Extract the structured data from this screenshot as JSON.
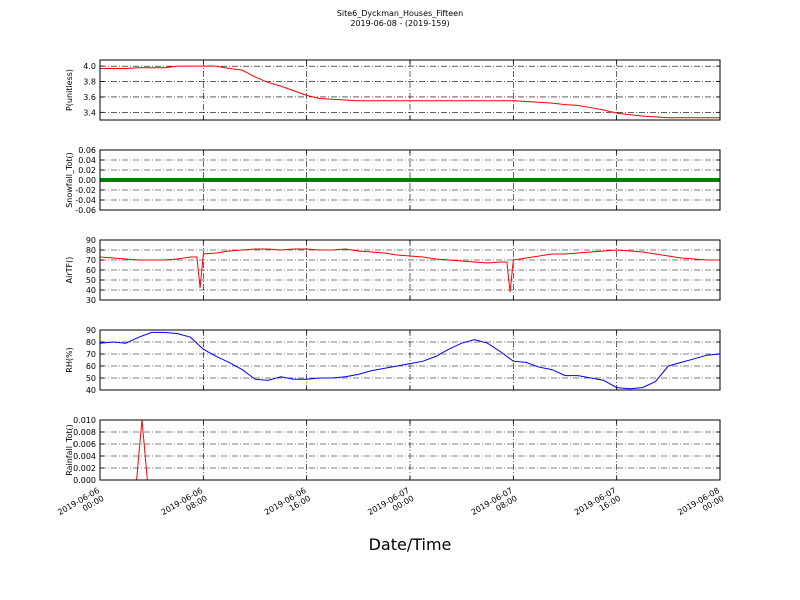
{
  "chart_data": [
    {
      "type": "line",
      "title": "Site6_Dyckman_Houses_Fifteen",
      "subtitle": "2019-06-08 - (2019-159)",
      "ylabel": "P(unitless)",
      "color": "#ff0000",
      "x": [
        "2019-06-06 00:00",
        "2019-06-06 01:00",
        "2019-06-06 02:00",
        "2019-06-06 03:00",
        "2019-06-06 04:00",
        "2019-06-06 05:00",
        "2019-06-06 06:00",
        "2019-06-06 07:00",
        "2019-06-06 08:00",
        "2019-06-06 09:00",
        "2019-06-06 10:00",
        "2019-06-06 11:00",
        "2019-06-06 12:00",
        "2019-06-06 13:00",
        "2019-06-06 14:00",
        "2019-06-06 15:00",
        "2019-06-06 16:00",
        "2019-06-06 17:00",
        "2019-06-06 18:00",
        "2019-06-06 19:00",
        "2019-06-06 20:00",
        "2019-06-06 21:00",
        "2019-06-06 22:00",
        "2019-06-06 23:00",
        "2019-06-07 00:00",
        "2019-06-07 01:00",
        "2019-06-07 02:00",
        "2019-06-07 03:00",
        "2019-06-07 04:00",
        "2019-06-07 05:00",
        "2019-06-07 06:00",
        "2019-06-07 07:00",
        "2019-06-07 08:00",
        "2019-06-07 09:00",
        "2019-06-07 10:00",
        "2019-06-07 11:00",
        "2019-06-07 12:00",
        "2019-06-07 13:00",
        "2019-06-07 14:00",
        "2019-06-07 15:00",
        "2019-06-07 16:00",
        "2019-06-07 17:00",
        "2019-06-07 18:00",
        "2019-06-07 19:00",
        "2019-06-07 20:00",
        "2019-06-07 21:00",
        "2019-06-07 22:00",
        "2019-06-07 23:00",
        "2019-06-08 00:00"
      ],
      "values": [
        3.97,
        3.97,
        3.97,
        3.98,
        3.98,
        3.98,
        4.0,
        4.0,
        4.0,
        4.0,
        3.97,
        3.95,
        3.86,
        3.79,
        3.74,
        3.68,
        3.62,
        3.58,
        3.57,
        3.56,
        3.55,
        3.55,
        3.55,
        3.55,
        3.55,
        3.55,
        3.55,
        3.55,
        3.55,
        3.55,
        3.55,
        3.55,
        3.55,
        3.54,
        3.53,
        3.52,
        3.5,
        3.49,
        3.46,
        3.43,
        3.39,
        3.37,
        3.35,
        3.34,
        3.33,
        3.33,
        3.33,
        3.33,
        3.33
      ],
      "xlim": [
        "2019-06-06 00:00",
        "2019-06-08 00:00"
      ],
      "xticks": [
        "2019-06-06 00:00",
        "2019-06-06 08:00",
        "2019-06-06 16:00",
        "2019-06-07 00:00",
        "2019-06-07 08:00",
        "2019-06-07 16:00",
        "2019-06-08 00:00"
      ],
      "ylim": [
        3.3,
        4.08
      ],
      "yticks": [
        3.4,
        3.6,
        3.8,
        {
          "value": 4.0,
          "label": "4.0"
        }
      ],
      "grid": true
    },
    {
      "type": "line",
      "ylabel": "Snowfall_Tot()",
      "color": "#008000",
      "x": [
        "2019-06-06 00:00",
        "2019-06-08 00:00"
      ],
      "values": [
        0,
        0
      ],
      "xlim": [
        "2019-06-06 00:00",
        "2019-06-08 00:00"
      ],
      "xticks": [
        "2019-06-06 00:00",
        "2019-06-06 08:00",
        "2019-06-06 16:00",
        "2019-06-07 00:00",
        "2019-06-07 08:00",
        "2019-06-07 16:00",
        "2019-06-08 00:00"
      ],
      "ylim": [
        -0.06,
        0.06
      ],
      "yticks": [
        -0.06,
        -0.04,
        -0.02,
        {
          "value": 0,
          "label": "0.00"
        },
        0.02,
        0.04,
        0.06
      ],
      "grid": true
    },
    {
      "type": "line",
      "ylabel": "AirTF()",
      "color": "#ff0000",
      "x": [
        "2019-06-06 00:00",
        "2019-06-06 01:00",
        "2019-06-06 02:00",
        "2019-06-06 03:00",
        "2019-06-06 04:00",
        "2019-06-06 05:00",
        "2019-06-06 06:00",
        "2019-06-06 07:00",
        "2019-06-06 07:30",
        "2019-06-06 07:45",
        "2019-06-06 08:00",
        "2019-06-06 09:00",
        "2019-06-06 10:00",
        "2019-06-06 11:00",
        "2019-06-06 12:00",
        "2019-06-06 13:00",
        "2019-06-06 14:00",
        "2019-06-06 15:00",
        "2019-06-06 16:00",
        "2019-06-06 17:00",
        "2019-06-06 18:00",
        "2019-06-06 19:00",
        "2019-06-06 20:00",
        "2019-06-06 21:00",
        "2019-06-06 22:00",
        "2019-06-06 23:00",
        "2019-06-07 00:00",
        "2019-06-07 01:00",
        "2019-06-07 02:00",
        "2019-06-07 03:00",
        "2019-06-07 04:00",
        "2019-06-07 05:00",
        "2019-06-07 06:00",
        "2019-06-07 07:00",
        "2019-06-07 07:30",
        "2019-06-07 07:45",
        "2019-06-07 08:00",
        "2019-06-07 09:00",
        "2019-06-07 10:00",
        "2019-06-07 11:00",
        "2019-06-07 12:00",
        "2019-06-07 13:00",
        "2019-06-07 14:00",
        "2019-06-07 15:00",
        "2019-06-07 16:00",
        "2019-06-07 17:00",
        "2019-06-07 18:00",
        "2019-06-07 19:00",
        "2019-06-07 20:00",
        "2019-06-07 21:00",
        "2019-06-07 22:00",
        "2019-06-07 23:00",
        "2019-06-08 00:00"
      ],
      "values": [
        73,
        72,
        71,
        70,
        70,
        70,
        71,
        73,
        73,
        42,
        76,
        77,
        79,
        80,
        81,
        81,
        80,
        81,
        81,
        80,
        80,
        81,
        79,
        78,
        77,
        75,
        74,
        73,
        71,
        70,
        69,
        68,
        67,
        68,
        68,
        38,
        70,
        72,
        74,
        76,
        76,
        77,
        78,
        79,
        80,
        79,
        78,
        76,
        74,
        72,
        71,
        70,
        70
      ],
      "xlim": [
        "2019-06-06 00:00",
        "2019-06-08 00:00"
      ],
      "xticks": [
        "2019-06-06 00:00",
        "2019-06-06 08:00",
        "2019-06-06 16:00",
        "2019-06-07 00:00",
        "2019-06-07 08:00",
        "2019-06-07 16:00",
        "2019-06-08 00:00"
      ],
      "ylim": [
        30,
        90
      ],
      "yticks": [
        30,
        40,
        50,
        60,
        70,
        80,
        90
      ],
      "grid": true
    },
    {
      "type": "line",
      "ylabel": "RH(%)",
      "color": "#0000ff",
      "x": [
        "2019-06-06 00:00",
        "2019-06-06 01:00",
        "2019-06-06 02:00",
        "2019-06-06 03:00",
        "2019-06-06 04:00",
        "2019-06-06 05:00",
        "2019-06-06 06:00",
        "2019-06-06 07:00",
        "2019-06-06 08:00",
        "2019-06-06 09:00",
        "2019-06-06 10:00",
        "2019-06-06 11:00",
        "2019-06-06 12:00",
        "2019-06-06 13:00",
        "2019-06-06 14:00",
        "2019-06-06 15:00",
        "2019-06-06 16:00",
        "2019-06-06 17:00",
        "2019-06-06 18:00",
        "2019-06-06 19:00",
        "2019-06-06 20:00",
        "2019-06-06 21:00",
        "2019-06-06 22:00",
        "2019-06-06 23:00",
        "2019-06-07 00:00",
        "2019-06-07 01:00",
        "2019-06-07 02:00",
        "2019-06-07 03:00",
        "2019-06-07 04:00",
        "2019-06-07 05:00",
        "2019-06-07 06:00",
        "2019-06-07 07:00",
        "2019-06-07 08:00",
        "2019-06-07 09:00",
        "2019-06-07 10:00",
        "2019-06-07 11:00",
        "2019-06-07 12:00",
        "2019-06-07 13:00",
        "2019-06-07 14:00",
        "2019-06-07 15:00",
        "2019-06-07 16:00",
        "2019-06-07 17:00",
        "2019-06-07 18:00",
        "2019-06-07 19:00",
        "2019-06-07 20:00",
        "2019-06-07 21:00",
        "2019-06-07 22:00",
        "2019-06-07 23:00",
        "2019-06-08 00:00"
      ],
      "values": [
        79,
        80,
        79,
        84,
        88,
        88,
        87,
        84,
        74,
        68,
        63,
        57,
        49,
        48,
        51,
        49,
        49,
        50,
        50,
        51,
        53,
        56,
        58,
        60,
        62,
        64,
        68,
        74,
        79,
        82,
        79,
        72,
        64,
        63,
        59,
        57,
        52,
        52,
        50,
        48,
        42,
        41,
        42,
        47,
        60,
        63,
        66,
        69,
        70
      ],
      "xlim": [
        "2019-06-06 00:00",
        "2019-06-08 00:00"
      ],
      "xticks": [
        "2019-06-06 00:00",
        "2019-06-06 08:00",
        "2019-06-06 16:00",
        "2019-06-07 00:00",
        "2019-06-07 08:00",
        "2019-06-07 16:00",
        "2019-06-08 00:00"
      ],
      "ylim": [
        40,
        90
      ],
      "yticks": [
        40,
        50,
        60,
        70,
        80,
        90
      ],
      "grid": true
    },
    {
      "type": "line",
      "ylabel": "Rainfall_Tot()",
      "xlabel": "Date/Time",
      "color": "#ff0000",
      "x": [
        "2019-06-06 00:00",
        "2019-06-06 02:50",
        "2019-06-06 03:15",
        "2019-06-06 03:40",
        "2019-06-08 00:00"
      ],
      "values": [
        0,
        0,
        0.01,
        0,
        0
      ],
      "xlim": [
        "2019-06-06 00:00",
        "2019-06-08 00:00"
      ],
      "xticks": [
        "2019-06-06 00:00",
        "2019-06-06 08:00",
        "2019-06-06 16:00",
        "2019-06-07 00:00",
        "2019-06-07 08:00",
        "2019-06-07 16:00",
        "2019-06-08 00:00"
      ],
      "ylim": [
        0,
        0.01
      ],
      "yticks": [
        {
          "value": 0,
          "label": "0.000"
        },
        {
          "value": 0.002,
          "label": "0.002"
        },
        {
          "value": 0.004,
          "label": "0.004"
        },
        {
          "value": 0.006,
          "label": "0.006"
        },
        {
          "value": 0.008,
          "label": "0.008"
        },
        {
          "value": 0.01,
          "label": "0.010"
        }
      ],
      "grid": true
    }
  ]
}
